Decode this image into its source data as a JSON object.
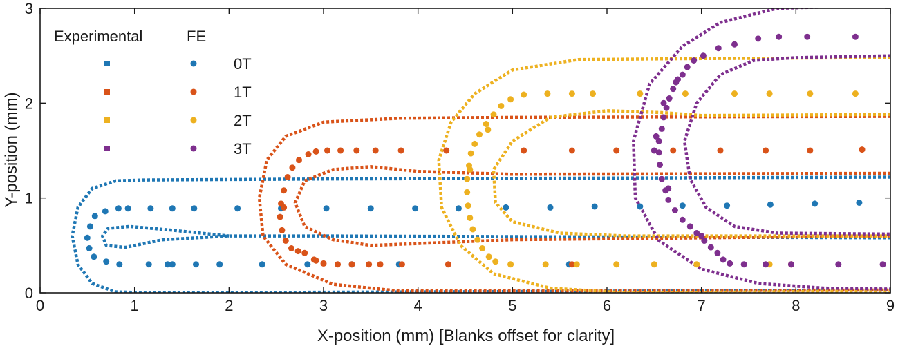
{
  "chart_data": {
    "type": "scatter",
    "xlabel": "X-position (mm) [Blanks offset for clarity]",
    "ylabel": "Y-position (mm)",
    "xlim": [
      0,
      9
    ],
    "ylim": [
      0,
      3
    ],
    "xticks": [
      "0",
      "1",
      "2",
      "3",
      "4",
      "5",
      "6",
      "7",
      "8",
      "9"
    ],
    "yticks": [
      "0",
      "1",
      "2",
      "3"
    ],
    "grid": false,
    "legend": {
      "placement": "top-left",
      "headers": [
        "Experimental",
        "FE"
      ],
      "labels": [
        "0T",
        "1T",
        "2T",
        "3T"
      ]
    },
    "colors": {
      "0T": "#1f77b4",
      "1T": "#d95319",
      "2T": "#edb120",
      "3T": "#7e2f8e"
    },
    "experimental_series": [
      {
        "name": "0T",
        "color": "#1f77b4",
        "curves": [
          [
            [
              9.0,
              1.22
            ],
            [
              6.0,
              1.21
            ],
            [
              3.0,
              1.2
            ],
            [
              1.1,
              1.19
            ],
            [
              0.8,
              1.18
            ],
            [
              0.55,
              1.1
            ],
            [
              0.4,
              0.9
            ],
            [
              0.34,
              0.6
            ],
            [
              0.4,
              0.3
            ],
            [
              0.55,
              0.1
            ],
            [
              0.8,
              0.01
            ],
            [
              1.2,
              0.0
            ],
            [
              4.0,
              0.01
            ],
            [
              9.0,
              0.03
            ]
          ],
          [
            [
              9.0,
              0.58
            ],
            [
              6.0,
              0.59
            ],
            [
              3.0,
              0.6
            ],
            [
              2.0,
              0.6
            ],
            [
              1.3,
              0.56
            ],
            [
              0.9,
              0.48
            ],
            [
              0.7,
              0.5
            ],
            [
              0.66,
              0.6
            ],
            [
              0.72,
              0.68
            ],
            [
              0.95,
              0.7
            ],
            [
              1.3,
              0.67
            ],
            [
              2.0,
              0.6
            ]
          ]
        ]
      },
      {
        "name": "1T",
        "color": "#d95319",
        "curves": [
          [
            [
              9.0,
              1.86
            ],
            [
              5.0,
              1.85
            ],
            [
              3.8,
              1.84
            ],
            [
              3.0,
              1.8
            ],
            [
              2.6,
              1.65
            ],
            [
              2.4,
              1.4
            ],
            [
              2.32,
              1.0
            ],
            [
              2.36,
              0.6
            ],
            [
              2.6,
              0.3
            ],
            [
              3.1,
              0.09
            ],
            [
              3.8,
              0.02
            ],
            [
              5.0,
              0.02
            ],
            [
              9.0,
              0.03
            ]
          ],
          [
            [
              9.0,
              1.26
            ],
            [
              5.0,
              1.25
            ],
            [
              4.0,
              1.28
            ],
            [
              3.5,
              1.33
            ],
            [
              3.1,
              1.3
            ],
            [
              2.8,
              1.18
            ],
            [
              2.7,
              0.95
            ],
            [
              2.8,
              0.7
            ],
            [
              3.1,
              0.56
            ],
            [
              3.5,
              0.5
            ],
            [
              4.0,
              0.52
            ],
            [
              5.0,
              0.56
            ],
            [
              9.0,
              0.6
            ]
          ]
        ]
      },
      {
        "name": "2T",
        "color": "#edb120",
        "curves": [
          [
            [
              9.0,
              2.48
            ],
            [
              7.0,
              2.47
            ],
            [
              5.7,
              2.46
            ],
            [
              5.0,
              2.35
            ],
            [
              4.6,
              2.1
            ],
            [
              4.35,
              1.8
            ],
            [
              4.22,
              1.4
            ],
            [
              4.25,
              0.9
            ],
            [
              4.45,
              0.5
            ],
            [
              4.8,
              0.2
            ],
            [
              5.4,
              0.05
            ],
            [
              6.2,
              0.0
            ],
            [
              9.0,
              0.02
            ]
          ],
          [
            [
              9.0,
              1.88
            ],
            [
              7.0,
              1.87
            ],
            [
              6.6,
              1.9
            ],
            [
              6.0,
              1.92
            ],
            [
              5.4,
              1.85
            ],
            [
              5.0,
              1.6
            ],
            [
              4.8,
              1.3
            ],
            [
              4.82,
              0.95
            ],
            [
              5.0,
              0.75
            ],
            [
              5.5,
              0.63
            ],
            [
              6.2,
              0.6
            ],
            [
              9.0,
              0.6
            ]
          ]
        ]
      },
      {
        "name": "3T",
        "color": "#7e2f8e",
        "curves": [
          [
            [
              9.0,
              3.03
            ],
            [
              8.5,
              3.02
            ],
            [
              7.8,
              3.0
            ],
            [
              7.2,
              2.85
            ],
            [
              6.8,
              2.6
            ],
            [
              6.45,
              2.2
            ],
            [
              6.28,
              1.6
            ],
            [
              6.3,
              1.0
            ],
            [
              6.55,
              0.55
            ],
            [
              7.0,
              0.25
            ],
            [
              7.6,
              0.1
            ],
            [
              8.3,
              0.05
            ],
            [
              9.0,
              0.04
            ]
          ],
          [
            [
              9.0,
              2.5
            ],
            [
              8.0,
              2.48
            ],
            [
              7.55,
              2.45
            ],
            [
              7.2,
              2.3
            ],
            [
              6.95,
              2.0
            ],
            [
              6.82,
              1.6
            ],
            [
              6.88,
              1.2
            ],
            [
              7.05,
              0.9
            ],
            [
              7.35,
              0.7
            ],
            [
              7.8,
              0.63
            ],
            [
              9.0,
              0.62
            ]
          ]
        ]
      }
    ],
    "fe_series": [
      {
        "name": "0T",
        "color": "#1f77b4",
        "points": [
          [
            0.93,
            0.89
          ],
          [
            0.83,
            0.89
          ],
          [
            0.69,
            0.86
          ],
          [
            0.58,
            0.81
          ],
          [
            0.53,
            0.7
          ],
          [
            0.5,
            0.58
          ],
          [
            0.52,
            0.47
          ],
          [
            0.57,
            0.38
          ],
          [
            0.7,
            0.33
          ],
          [
            0.84,
            0.3
          ],
          [
            1.15,
            0.3
          ],
          [
            1.35,
            0.3
          ],
          [
            1.4,
            0.3
          ],
          [
            1.65,
            0.3
          ],
          [
            1.9,
            0.3
          ],
          [
            2.35,
            0.3
          ],
          [
            2.83,
            0.3
          ],
          [
            3.3,
            0.3
          ],
          [
            3.8,
            0.3
          ],
          [
            1.17,
            0.89
          ],
          [
            1.4,
            0.89
          ],
          [
            1.63,
            0.89
          ],
          [
            2.09,
            0.89
          ],
          [
            2.55,
            0.89
          ],
          [
            3.03,
            0.89
          ],
          [
            3.5,
            0.89
          ],
          [
            3.97,
            0.89
          ],
          [
            4.43,
            0.89
          ],
          [
            4.93,
            0.9
          ],
          [
            5.4,
            0.9
          ],
          [
            5.87,
            0.91
          ],
          [
            6.35,
            0.91
          ],
          [
            6.8,
            0.92
          ],
          [
            7.27,
            0.92
          ],
          [
            7.73,
            0.93
          ],
          [
            8.2,
            0.94
          ],
          [
            8.67,
            0.95
          ],
          [
            5.6,
            0.3
          ]
        ]
      },
      {
        "name": "1T",
        "color": "#d95319",
        "points": [
          [
            3.04,
            1.5
          ],
          [
            2.92,
            1.49
          ],
          [
            2.84,
            1.46
          ],
          [
            2.74,
            1.4
          ],
          [
            2.67,
            1.32
          ],
          [
            2.62,
            1.22
          ],
          [
            2.58,
            1.08
          ],
          [
            2.55,
            0.94
          ],
          [
            2.54,
            0.8
          ],
          [
            2.56,
            0.66
          ],
          [
            2.6,
            0.55
          ],
          [
            2.66,
            0.47
          ],
          [
            2.73,
            0.44
          ],
          [
            2.8,
            0.42
          ],
          [
            2.92,
            0.34
          ],
          [
            3.0,
            0.31
          ],
          [
            3.15,
            0.3
          ],
          [
            3.3,
            0.3
          ],
          [
            3.48,
            0.3
          ],
          [
            3.6,
            0.3
          ],
          [
            3.83,
            0.3
          ],
          [
            4.32,
            0.3
          ],
          [
            5.63,
            0.3
          ],
          [
            5.12,
            1.5
          ],
          [
            3.18,
            1.5
          ],
          [
            3.35,
            1.5
          ],
          [
            3.55,
            1.5
          ],
          [
            3.82,
            1.5
          ],
          [
            4.3,
            1.5
          ],
          [
            5.63,
            1.5
          ],
          [
            6.1,
            1.5
          ],
          [
            6.7,
            1.5
          ],
          [
            7.2,
            1.5
          ],
          [
            7.68,
            1.5
          ],
          [
            8.15,
            1.5
          ],
          [
            8.7,
            1.51
          ],
          [
            7.95,
            0.3
          ],
          [
            2.9,
            0.35
          ],
          [
            2.58,
            0.9
          ]
        ]
      },
      {
        "name": "2T",
        "color": "#edb120",
        "points": [
          [
            5.37,
            2.1
          ],
          [
            5.12,
            2.09
          ],
          [
            4.98,
            2.04
          ],
          [
            4.88,
            1.97
          ],
          [
            4.8,
            1.88
          ],
          [
            4.72,
            1.78
          ],
          [
            4.65,
            1.67
          ],
          [
            4.6,
            1.57
          ],
          [
            4.56,
            1.47
          ],
          [
            4.54,
            1.34
          ],
          [
            4.52,
            1.2
          ],
          [
            4.52,
            1.06
          ],
          [
            4.53,
            0.92
          ],
          [
            4.55,
            0.79
          ],
          [
            4.58,
            0.67
          ],
          [
            4.63,
            0.56
          ],
          [
            4.68,
            0.47
          ],
          [
            4.75,
            0.38
          ],
          [
            4.82,
            0.33
          ],
          [
            4.98,
            0.3
          ],
          [
            5.35,
            0.3
          ],
          [
            5.68,
            0.3
          ],
          [
            6.1,
            0.3
          ],
          [
            6.5,
            0.3
          ],
          [
            6.95,
            0.3
          ],
          [
            7.72,
            0.3
          ],
          [
            5.63,
            2.1
          ],
          [
            5.85,
            2.1
          ],
          [
            6.35,
            2.1
          ],
          [
            6.83,
            2.1
          ],
          [
            7.35,
            2.1
          ],
          [
            7.72,
            2.1
          ],
          [
            8.15,
            2.1
          ],
          [
            8.63,
            2.1
          ],
          [
            4.74,
            1.72
          ],
          [
            4.55,
            1.3
          ]
        ]
      },
      {
        "name": "3T",
        "color": "#7e2f8e",
        "points": [
          [
            7.18,
            2.58
          ],
          [
            7.35,
            2.62
          ],
          [
            7.6,
            2.68
          ],
          [
            7.82,
            2.7
          ],
          [
            8.12,
            2.7
          ],
          [
            8.63,
            2.7
          ],
          [
            7.02,
            2.5
          ],
          [
            6.92,
            2.45
          ],
          [
            6.85,
            2.38
          ],
          [
            6.8,
            2.3
          ],
          [
            6.73,
            2.22
          ],
          [
            6.7,
            2.15
          ],
          [
            6.66,
            2.05
          ],
          [
            6.63,
            1.95
          ],
          [
            6.6,
            1.85
          ],
          [
            6.58,
            1.73
          ],
          [
            6.55,
            1.6
          ],
          [
            6.55,
            1.48
          ],
          [
            6.56,
            1.35
          ],
          [
            6.58,
            1.2
          ],
          [
            6.62,
            1.08
          ],
          [
            6.65,
            0.98
          ],
          [
            6.72,
            0.87
          ],
          [
            6.8,
            0.77
          ],
          [
            6.88,
            0.7
          ],
          [
            6.95,
            0.63
          ],
          [
            7.03,
            0.55
          ],
          [
            7.1,
            0.48
          ],
          [
            7.17,
            0.42
          ],
          [
            7.23,
            0.35
          ],
          [
            7.3,
            0.31
          ],
          [
            7.45,
            0.3
          ],
          [
            7.68,
            0.3
          ],
          [
            7.95,
            0.3
          ],
          [
            8.45,
            0.3
          ],
          [
            8.92,
            0.3
          ],
          [
            6.5,
            1.5
          ],
          [
            6.52,
            1.65
          ],
          [
            6.6,
            2.0
          ],
          [
            6.75,
            2.25
          ],
          [
            6.65,
            1.1
          ],
          [
            7.0,
            0.6
          ]
        ]
      }
    ]
  }
}
